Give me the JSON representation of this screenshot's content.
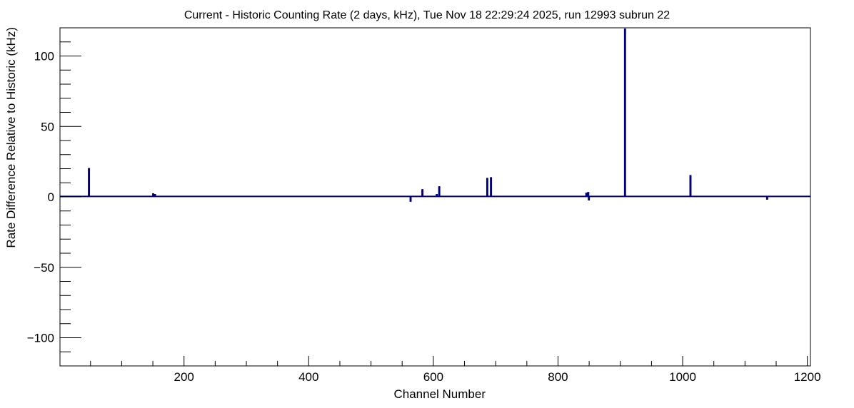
{
  "chart_data": {
    "type": "line",
    "title": "Current - Historic Counting Rate (2 days, kHz), Tue Nov 18 22:29:24 2025, run 12993 subrun 22",
    "xlabel": "Channel Number",
    "ylabel": "Rate Difference Relative to Historic (kHz)",
    "xlim": [
      1,
      1205
    ],
    "ylim": [
      -120,
      120
    ],
    "x_ticks": [
      200,
      400,
      600,
      800,
      1000,
      1200
    ],
    "x_tick_labels": [
      "200",
      "400",
      "600",
      "800",
      "1000",
      "1200"
    ],
    "y_ticks": [
      -100,
      -50,
      0,
      50,
      100
    ],
    "y_tick_labels": [
      "−100",
      "−50",
      "0",
      "50",
      "100"
    ],
    "grid": false,
    "line_color": "#000080",
    "baseline": 0.3,
    "series": [
      {
        "points": [
          [
            47,
            20
          ],
          [
            150,
            2
          ],
          [
            153,
            1.5
          ],
          [
            563,
            -3
          ],
          [
            582,
            5
          ],
          [
            605,
            1.5
          ],
          [
            609,
            7
          ],
          [
            686,
            13
          ],
          [
            692,
            13.5
          ],
          [
            845,
            2.5
          ],
          [
            848,
            3
          ],
          [
            849,
            -2
          ],
          [
            907,
            119
          ],
          [
            1012,
            15
          ],
          [
            1135,
            -1.5
          ]
        ]
      }
    ]
  }
}
